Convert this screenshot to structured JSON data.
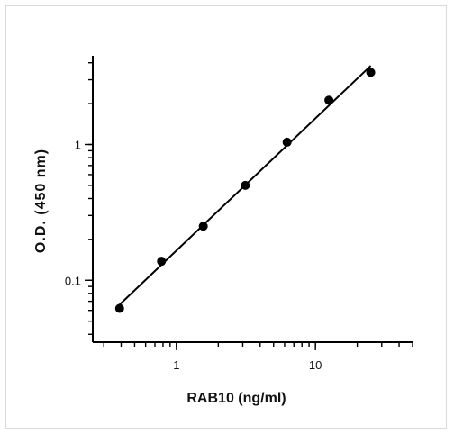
{
  "chart_data": {
    "type": "scatter",
    "xlabel": "RAB10 (ng/ml)",
    "ylabel": "O.D. (450 nm)",
    "x_scale": "log",
    "y_scale": "log",
    "xlim": [
      0.25,
      50
    ],
    "ylim": [
      0.035,
      4.5
    ],
    "x_ticks": [
      {
        "value": 1,
        "label": "1"
      },
      {
        "value": 10,
        "label": "10"
      }
    ],
    "y_ticks": [
      {
        "value": 0.1,
        "label": "0.1"
      },
      {
        "value": 1,
        "label": "1"
      }
    ],
    "grid": false,
    "legend": "none",
    "series": [
      {
        "x": [
          0.39,
          0.78,
          1.56,
          3.13,
          6.25,
          12.5,
          25
        ],
        "y": [
          0.062,
          0.138,
          0.25,
          0.5,
          1.04,
          2.12,
          3.4
        ],
        "fit_line": true,
        "color": "#000000"
      }
    ]
  }
}
